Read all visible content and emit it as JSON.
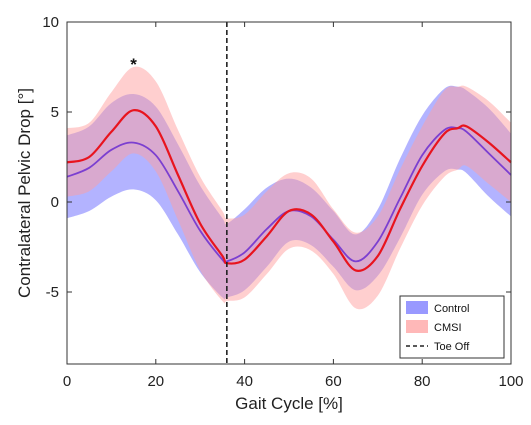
{
  "chart_data": {
    "type": "line",
    "title": "",
    "xlabel": "Gait Cycle [%]",
    "ylabel": "Contralateral Pelvic Drop [°]",
    "xlim": [
      0,
      100
    ],
    "ylim": [
      -9,
      10
    ],
    "xticks": [
      0,
      20,
      40,
      60,
      80,
      100
    ],
    "yticks": [
      -5,
      0,
      5,
      10
    ],
    "grid": false,
    "legend_position": "bottom-right",
    "x": [
      0,
      5,
      10,
      15,
      20,
      25,
      30,
      35,
      36,
      40,
      45,
      50,
      55,
      60,
      65,
      70,
      75,
      80,
      85,
      88,
      90,
      95,
      100
    ],
    "series": [
      {
        "name": "Control",
        "color": "#7b3fd0",
        "band_color": "#8080ff",
        "mean": [
          1.4,
          1.9,
          2.9,
          3.3,
          2.6,
          0.6,
          -1.6,
          -3.2,
          -3.3,
          -2.8,
          -1.5,
          -0.5,
          -0.8,
          -2.1,
          -3.3,
          -2.2,
          0.2,
          2.6,
          4.0,
          4.1,
          3.9,
          2.7,
          1.5
        ],
        "upper": [
          3.7,
          4.2,
          5.5,
          6.0,
          5.3,
          3.2,
          0.9,
          -0.9,
          -1.2,
          -0.4,
          0.8,
          1.3,
          0.8,
          -0.5,
          -1.8,
          -0.4,
          2.4,
          4.8,
          6.3,
          6.4,
          6.2,
          5.2,
          3.8
        ],
        "lower": [
          -0.9,
          -0.5,
          0.3,
          0.7,
          0.1,
          -1.8,
          -3.9,
          -5.3,
          -5.3,
          -4.9,
          -3.6,
          -2.2,
          -2.4,
          -3.6,
          -4.9,
          -4.1,
          -2.0,
          0.4,
          1.7,
          1.8,
          1.6,
          0.3,
          -0.8
        ]
      },
      {
        "name": "CMSI",
        "color": "#e8141e",
        "band_color": "#ffa0a0",
        "mean": [
          2.2,
          2.5,
          3.9,
          5.1,
          4.2,
          1.5,
          -1.2,
          -3.0,
          -3.4,
          -3.2,
          -1.9,
          -0.5,
          -0.7,
          -2.2,
          -3.8,
          -3.0,
          -0.4,
          2.0,
          3.8,
          4.1,
          4.2,
          3.3,
          2.2
        ],
        "upper": [
          4.1,
          4.4,
          6.1,
          7.5,
          6.7,
          4.0,
          1.4,
          -0.5,
          -0.9,
          -0.7,
          0.6,
          1.6,
          1.3,
          -0.4,
          -1.7,
          -0.8,
          1.8,
          4.2,
          6.2,
          6.4,
          6.4,
          5.6,
          4.4
        ],
        "lower": [
          0.3,
          0.6,
          1.7,
          2.7,
          1.7,
          -1.0,
          -3.8,
          -5.5,
          -5.5,
          -5.3,
          -4.0,
          -2.6,
          -2.7,
          -4.0,
          -5.9,
          -5.2,
          -2.6,
          -0.2,
          1.4,
          1.8,
          2.0,
          1.0,
          0.0
        ]
      }
    ],
    "reference_line": {
      "name": "Toe Off",
      "x": 36,
      "style": "dashed"
    },
    "annotations": [
      {
        "text": "*",
        "x": 15
      }
    ]
  }
}
